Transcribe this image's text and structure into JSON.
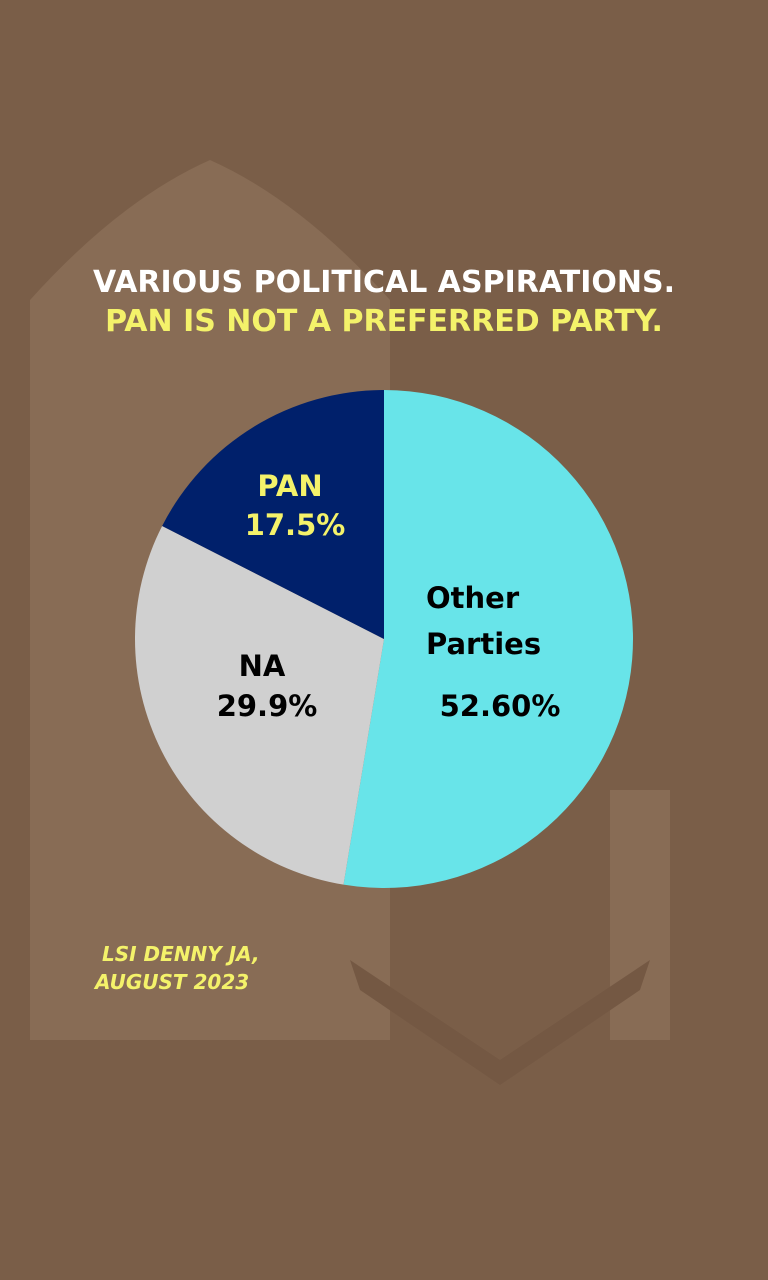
{
  "chart_data": {
    "type": "pie",
    "title": "VARIOUS POLITICAL ASPIRATIONS.",
    "subtitle": "PAN IS NOT A PREFERRED PARTY.",
    "categories": [
      "Other Parties",
      "NA",
      "PAN"
    ],
    "values": [
      52.6,
      29.9,
      17.5
    ],
    "value_labels": [
      "52.60%",
      "29.9%",
      "17.5%"
    ],
    "colors": [
      "#68e4e9",
      "#d0d0d0",
      "#00206b"
    ],
    "label_colors": [
      "#000000",
      "#000000",
      "#f4f26a"
    ],
    "source": [
      "LSI DENNY JA,",
      "AUGUST 2023"
    ]
  }
}
